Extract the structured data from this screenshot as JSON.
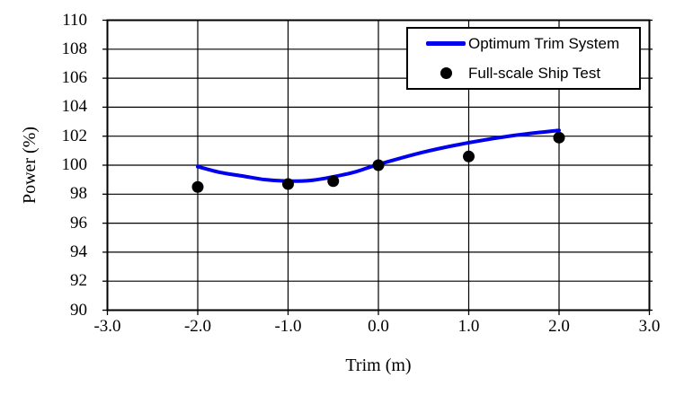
{
  "chart_data": {
    "type": "line",
    "title": "",
    "xlabel": "Trim (m)",
    "ylabel": "Power (%)",
    "xlim": [
      -3.0,
      3.0
    ],
    "ylim": [
      90,
      110
    ],
    "x_ticks": [
      -3,
      -2,
      -1,
      0,
      1,
      2,
      3
    ],
    "x_tick_labels": [
      "-3.0",
      "-2.0",
      "-1.0",
      "0.0",
      "1.0",
      "2.0",
      "3.0"
    ],
    "y_ticks": [
      90,
      92,
      94,
      96,
      98,
      100,
      102,
      104,
      106,
      108,
      110
    ],
    "y_tick_labels": [
      "90",
      "92",
      "94",
      "96",
      "98",
      "100",
      "102",
      "104",
      "106",
      "108",
      "110"
    ],
    "grid": true,
    "legend_position": "top-right",
    "series": [
      {
        "name": "Optimum Trim System",
        "type": "line",
        "color": "#0000ee",
        "line_width": 4,
        "points": [
          [
            -2.0,
            99.9
          ],
          [
            -1.75,
            99.5
          ],
          [
            -1.5,
            99.25
          ],
          [
            -1.25,
            99.0
          ],
          [
            -1.0,
            98.9
          ],
          [
            -0.75,
            98.95
          ],
          [
            -0.5,
            99.2
          ],
          [
            -0.25,
            99.55
          ],
          [
            0.0,
            100.05
          ],
          [
            0.5,
            100.9
          ],
          [
            1.0,
            101.55
          ],
          [
            1.5,
            102.05
          ],
          [
            2.0,
            102.4
          ]
        ]
      },
      {
        "name": "Full-scale Ship Test",
        "type": "scatter",
        "color": "#000000",
        "marker_radius": 6.5,
        "points": [
          [
            -2.0,
            98.5
          ],
          [
            -1.0,
            98.7
          ],
          [
            -0.5,
            98.9
          ],
          [
            0.0,
            100.0
          ],
          [
            1.0,
            100.6
          ],
          [
            2.0,
            101.9
          ]
        ]
      }
    ]
  },
  "colors": {
    "background": "#ffffff",
    "plot_border": "#000000",
    "grid": "#000000",
    "tick": "#000000",
    "text": "#000000",
    "legend_border": "#000000"
  }
}
